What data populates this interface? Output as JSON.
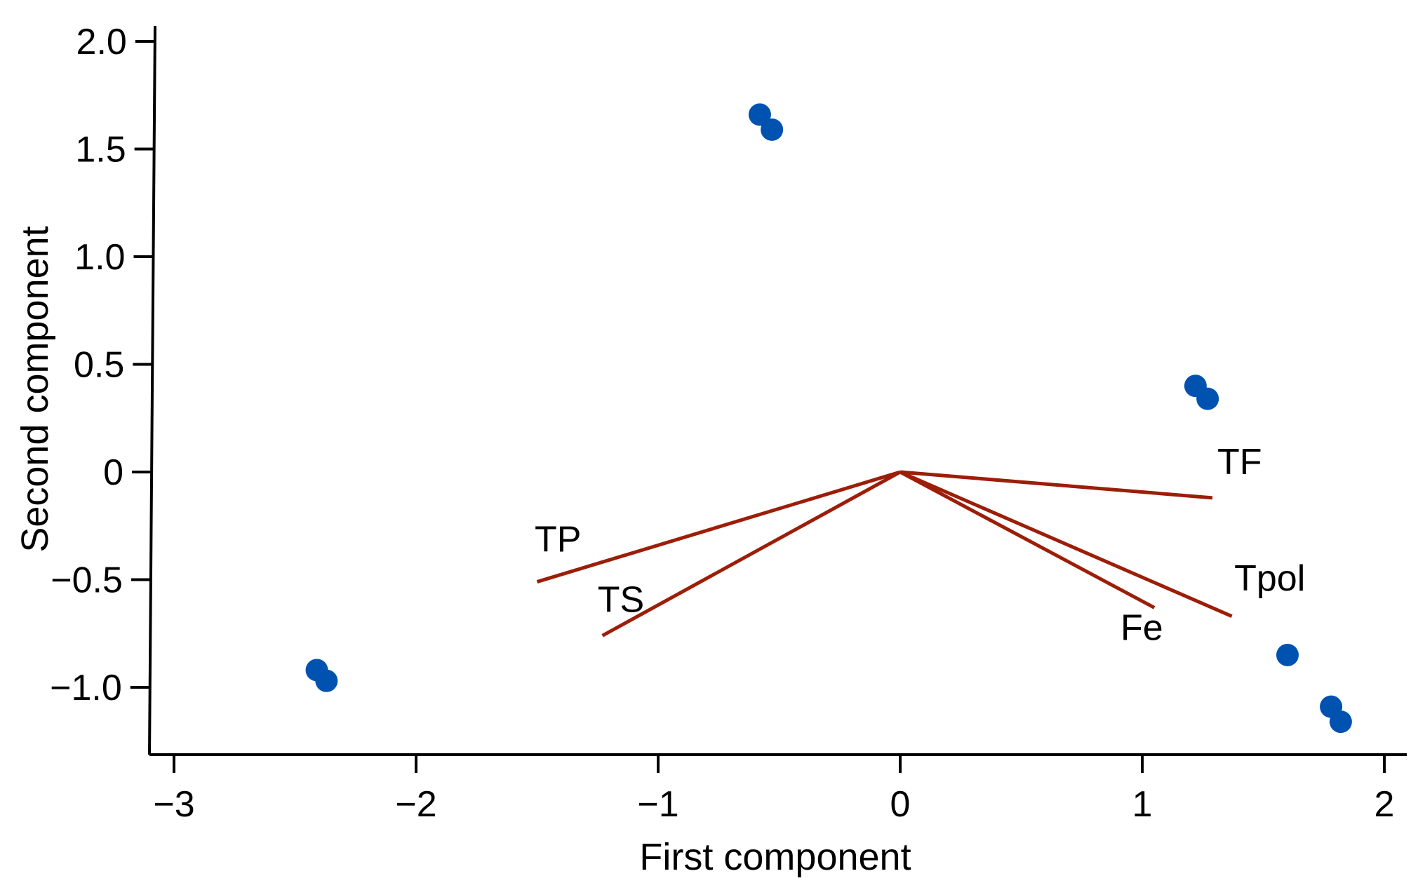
{
  "chart_data": {
    "type": "scatter",
    "title": "",
    "xlabel": "First component",
    "ylabel": "Second component",
    "xlim": [
      -3.1,
      2.1
    ],
    "ylim": [
      -1.32,
      2.08
    ],
    "x_ticks": [
      -3,
      -2,
      -1,
      0,
      1,
      2
    ],
    "x_tick_labels": [
      "−3",
      "−2",
      "−1",
      "0",
      "1",
      "2"
    ],
    "y_ticks": [
      -1.0,
      -0.5,
      0,
      0.5,
      1.0,
      1.5,
      2.0
    ],
    "y_tick_labels": [
      "−1.0",
      "−0.5",
      "0",
      "0.5",
      "1.0",
      "1.5",
      "2.0"
    ],
    "grid": false,
    "colors": {
      "points": "#0052b0",
      "vectors": "#9c1e08",
      "axes": "#000000"
    },
    "points": [
      {
        "x": -0.58,
        "y": 1.66
      },
      {
        "x": -0.53,
        "y": 1.59
      },
      {
        "x": 1.22,
        "y": 0.4
      },
      {
        "x": 1.27,
        "y": 0.34
      },
      {
        "x": -2.41,
        "y": -0.92
      },
      {
        "x": -2.37,
        "y": -0.97
      },
      {
        "x": 1.6,
        "y": -0.85
      },
      {
        "x": 1.78,
        "y": -1.09
      },
      {
        "x": 1.82,
        "y": -1.16
      }
    ],
    "vectors": [
      {
        "name": "TF",
        "x": 1.29,
        "y": -0.12
      },
      {
        "name": "TP",
        "x": -1.5,
        "y": -0.51
      },
      {
        "name": "TS",
        "x": -1.23,
        "y": -0.76
      },
      {
        "name": "Tpol",
        "x": 1.37,
        "y": -0.67
      },
      {
        "name": "Fe",
        "x": 1.05,
        "y": -0.63
      }
    ],
    "vector_labels": [
      {
        "text": "TF",
        "x": 1.31,
        "y": -0.01
      },
      {
        "text": "TP",
        "x": -1.51,
        "y": -0.37
      },
      {
        "text": "TS",
        "x": -1.25,
        "y": -0.65
      },
      {
        "text": "Tpol",
        "x": 1.38,
        "y": -0.55
      },
      {
        "text": "Fe",
        "x": 0.91,
        "y": -0.78
      }
    ]
  }
}
